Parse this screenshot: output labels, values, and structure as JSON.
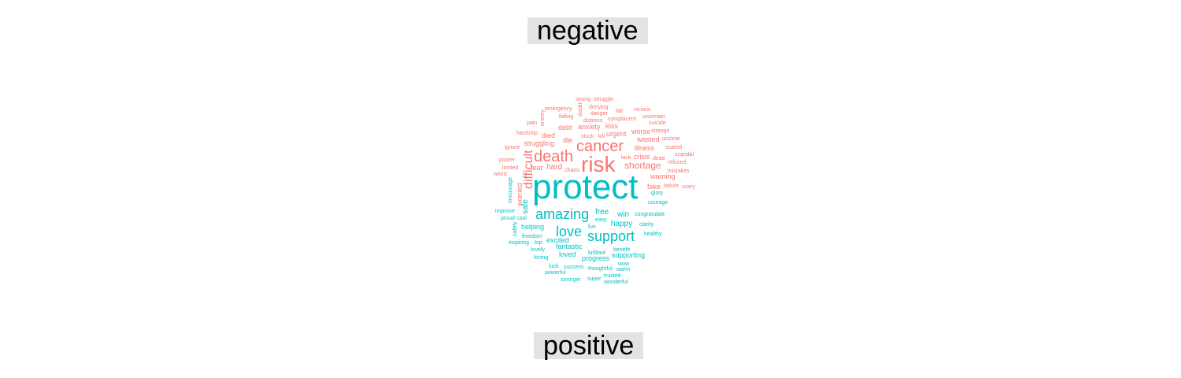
{
  "chart_data": {
    "type": "wordcloud",
    "groups": [
      {
        "label": "negative",
        "color": "#F8766D",
        "words": [
          "risk",
          "death",
          "cancer",
          "difficult",
          "shortage",
          "fear",
          "hard",
          "struggling",
          "died",
          "die",
          "debt",
          "anxiety",
          "urgent",
          "worse",
          "loss",
          "illness",
          "wasted",
          "crisis",
          "warning",
          "fake",
          "stuck",
          "kill",
          "lack",
          "dead",
          "chaos",
          "emergency",
          "falling",
          "enemy",
          "pain",
          "hardship",
          "ignore",
          "poorer",
          "limited",
          "weird",
          "wrong",
          "struggle",
          "doubt",
          "denying",
          "danger",
          "distress",
          "complacent",
          "fall",
          "vicious",
          "uncertain",
          "suicide",
          "strange",
          "unclear",
          "scared",
          "scandal",
          "refused",
          "mistakes",
          "failure",
          "scary",
          "worried"
        ]
      },
      {
        "label": "positive",
        "color": "#00BFC4",
        "words": [
          "protect",
          "amazing",
          "love",
          "support",
          "safe",
          "free",
          "win",
          "happy",
          "helping",
          "excited",
          "fantastic",
          "loved",
          "progress",
          "supporting",
          "glory",
          "courage",
          "congratulate",
          "clarity",
          "healthy",
          "easy",
          "fun",
          "brilliant",
          "benefit",
          "wow",
          "warm",
          "thoughtful",
          "success",
          "trusted",
          "super",
          "wonderful",
          "stronger",
          "powerful",
          "luck",
          "lovely",
          "loving",
          "inspiring",
          "top",
          "freedom",
          "safety",
          "proud",
          "cool",
          "improve",
          "encourage"
        ]
      }
    ]
  }
}
